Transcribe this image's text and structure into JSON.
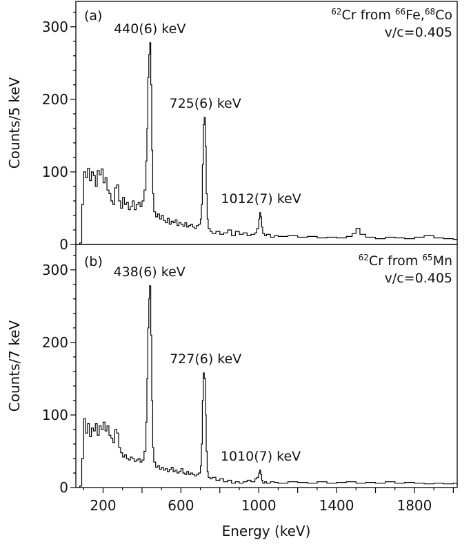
{
  "chart_data": [
    {
      "type": "line",
      "panel_label": "(a)",
      "ylabel": "Counts/5 keV",
      "xlim": [
        60,
        2020
      ],
      "ylim": [
        0,
        335
      ],
      "y_ticks": [
        0,
        100,
        200,
        300
      ],
      "y_tick_labels": [
        "0",
        "100",
        "200",
        "300"
      ],
      "info_line1": [
        "62",
        "Cr from ",
        "66",
        "Fe,",
        "68",
        "Co"
      ],
      "info_line2": "v/c=0.405",
      "annotations": [
        {
          "text": "440(6) keV",
          "x": 440,
          "y": 278
        },
        {
          "text": "725(6) keV",
          "x": 725,
          "y": 175
        },
        {
          "text": "1012(7) keV",
          "x": 1012,
          "y": 44
        }
      ],
      "series": [
        {
          "x": [
            80,
            90,
            100,
            110,
            120,
            130,
            140,
            150,
            160,
            170,
            180,
            190,
            200,
            210,
            220,
            230,
            240,
            250,
            260,
            270,
            280,
            290,
            300,
            310,
            320,
            330,
            340,
            350,
            360,
            370,
            380,
            390,
            400,
            410,
            420,
            425,
            430,
            435,
            440,
            445,
            450,
            455,
            460,
            470,
            480,
            490,
            500,
            510,
            520,
            530,
            540,
            550,
            560,
            570,
            580,
            590,
            600,
            610,
            620,
            630,
            640,
            650,
            660,
            670,
            680,
            690,
            700,
            705,
            710,
            715,
            720,
            725,
            730,
            735,
            740,
            750,
            760,
            780,
            800,
            820,
            840,
            860,
            880,
            900,
            920,
            940,
            960,
            980,
            990,
            1000,
            1005,
            1010,
            1015,
            1020,
            1030,
            1040,
            1060,
            1080,
            1100,
            1150,
            1200,
            1250,
            1300,
            1350,
            1400,
            1450,
            1480,
            1500,
            1520,
            1550,
            1600,
            1650,
            1700,
            1750,
            1800,
            1850,
            1900,
            1950,
            2000,
            2020
          ],
          "y": [
            2,
            55,
            100,
            92,
            105,
            88,
            100,
            95,
            80,
            102,
            96,
            104,
            85,
            92,
            75,
            70,
            60,
            55,
            78,
            82,
            60,
            50,
            65,
            55,
            58,
            48,
            52,
            60,
            48,
            55,
            58,
            52,
            60,
            75,
            115,
            160,
            230,
            262,
            278,
            220,
            130,
            70,
            45,
            38,
            42,
            35,
            40,
            33,
            30,
            36,
            28,
            32,
            30,
            34,
            26,
            30,
            28,
            25,
            30,
            24,
            26,
            28,
            24,
            22,
            26,
            28,
            35,
            55,
            110,
            165,
            175,
            135,
            70,
            35,
            22,
            18,
            15,
            18,
            14,
            16,
            20,
            12,
            18,
            14,
            16,
            12,
            14,
            16,
            22,
            35,
            44,
            38,
            24,
            15,
            12,
            14,
            10,
            12,
            11,
            12,
            10,
            11,
            9,
            10,
            9,
            11,
            15,
            22,
            14,
            10,
            8,
            10,
            9,
            8,
            10,
            12,
            9,
            8,
            7,
            8
          ]
        }
      ]
    },
    {
      "type": "line",
      "panel_label": "(b)",
      "ylabel": "Counts/7 keV",
      "xlabel": "Energy (keV)",
      "xlim": [
        60,
        2020
      ],
      "ylim": [
        0,
        335
      ],
      "x_ticks": [
        200,
        600,
        1000,
        1400,
        1800
      ],
      "x_tick_labels": [
        "200",
        "600",
        "1000",
        "1400",
        "1800"
      ],
      "y_ticks": [
        0,
        100,
        200,
        300
      ],
      "y_tick_labels": [
        "0",
        "100",
        "200",
        "300"
      ],
      "info_line1": [
        "62",
        "Cr from ",
        "65",
        "Mn"
      ],
      "info_line2": "v/c=0.405",
      "annotations": [
        {
          "text": "438(6) keV",
          "x": 438,
          "y": 278
        },
        {
          "text": "727(6) keV",
          "x": 727,
          "y": 158
        },
        {
          "text": "1010(7) keV",
          "x": 1010,
          "y": 24
        }
      ],
      "series": [
        {
          "x": [
            80,
            90,
            100,
            110,
            120,
            130,
            140,
            150,
            160,
            170,
            180,
            190,
            200,
            210,
            220,
            230,
            240,
            250,
            260,
            270,
            280,
            290,
            300,
            310,
            320,
            330,
            340,
            350,
            360,
            370,
            380,
            390,
            400,
            410,
            420,
            425,
            430,
            435,
            438,
            445,
            450,
            455,
            460,
            470,
            480,
            490,
            500,
            510,
            520,
            530,
            540,
            550,
            560,
            570,
            580,
            590,
            600,
            610,
            620,
            630,
            640,
            650,
            660,
            670,
            680,
            690,
            700,
            705,
            710,
            715,
            720,
            727,
            730,
            735,
            740,
            750,
            760,
            780,
            800,
            820,
            840,
            860,
            880,
            900,
            920,
            940,
            960,
            980,
            990,
            1000,
            1005,
            1010,
            1015,
            1020,
            1030,
            1040,
            1060,
            1080,
            1100,
            1150,
            1200,
            1250,
            1300,
            1350,
            1400,
            1450,
            1500,
            1550,
            1600,
            1650,
            1700,
            1750,
            1800,
            1850,
            1900,
            1950,
            2000,
            2020
          ],
          "y": [
            2,
            40,
            95,
            75,
            88,
            70,
            82,
            78,
            88,
            72,
            85,
            80,
            90,
            78,
            85,
            72,
            68,
            62,
            80,
            75,
            55,
            48,
            42,
            45,
            40,
            38,
            42,
            40,
            36,
            38,
            40,
            35,
            38,
            50,
            90,
            150,
            220,
            260,
            278,
            210,
            120,
            55,
            35,
            28,
            30,
            25,
            28,
            24,
            26,
            22,
            25,
            28,
            22,
            24,
            20,
            22,
            26,
            20,
            18,
            22,
            18,
            20,
            18,
            16,
            18,
            20,
            30,
            60,
            120,
            158,
            150,
            100,
            50,
            22,
            14,
            12,
            14,
            10,
            12,
            8,
            10,
            6,
            8,
            6,
            8,
            10,
            8,
            12,
            14,
            20,
            24,
            18,
            10,
            6,
            8,
            6,
            8,
            7,
            6,
            8,
            7,
            6,
            8,
            6,
            7,
            8,
            6,
            7,
            6,
            8,
            6,
            7,
            6,
            5,
            6,
            5,
            6,
            4
          ]
        }
      ]
    }
  ]
}
